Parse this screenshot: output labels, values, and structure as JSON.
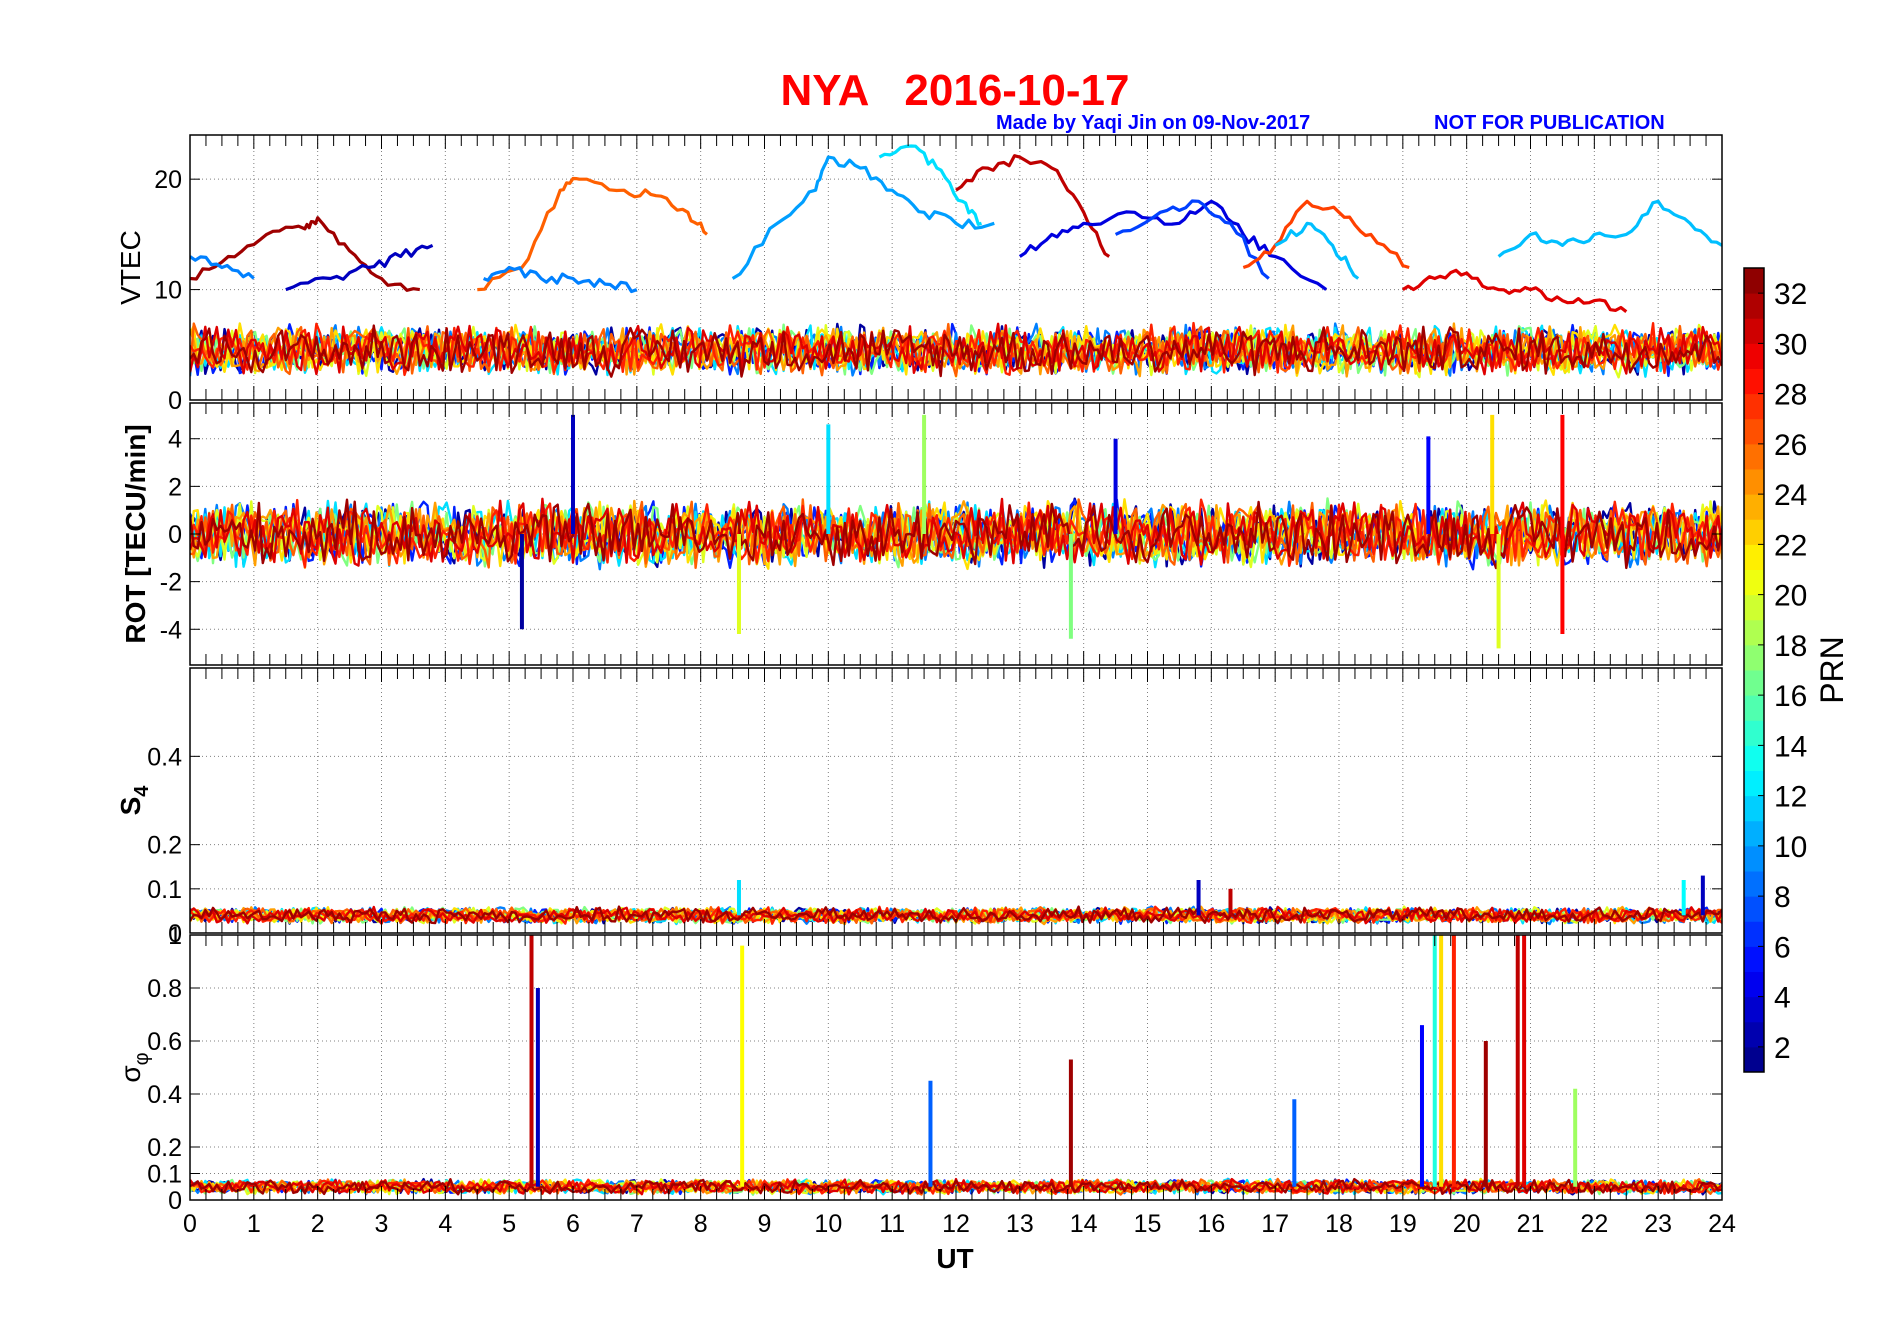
{
  "figure": {
    "title": "NYA   2016-10-17",
    "made_by": "Made by Yaqi Jin on 09-Nov-2017",
    "notice": "NOT FOR PUBLICATION",
    "xlabel": "UT",
    "x_ticks": [
      "0",
      "1",
      "2",
      "3",
      "4",
      "5",
      "6",
      "7",
      "8",
      "9",
      "10",
      "11",
      "12",
      "13",
      "14",
      "15",
      "16",
      "17",
      "18",
      "19",
      "20",
      "21",
      "22",
      "23",
      "24"
    ]
  },
  "panels": [
    {
      "id": "vtec",
      "ylabel": "VTEC",
      "ylabel_bold": false,
      "ylim": [
        0,
        24
      ],
      "yticks": [
        0,
        10,
        20
      ],
      "ytick_labels": [
        "0",
        "10",
        "20"
      ]
    },
    {
      "id": "rot",
      "ylabel": "ROT [TECU/min]",
      "ylabel_bold": true,
      "ylim": [
        -5.5,
        5.5
      ],
      "yticks": [
        -4,
        -2,
        0,
        2,
        4
      ],
      "ytick_labels": [
        "-4",
        "-2",
        "0",
        "2",
        "4"
      ]
    },
    {
      "id": "s4",
      "ylabel": "S",
      "ylabel_sub": "4",
      "ylabel_bold": true,
      "ylim": [
        0,
        0.6
      ],
      "yticks": [
        0,
        0.1,
        0.2,
        0.4
      ],
      "ytick_labels": [
        "0",
        "0.1",
        "0.2",
        "0.4"
      ]
    },
    {
      "id": "sigphi",
      "ylabel": "σ",
      "ylabel_sub": "φ",
      "ylabel_bold": false,
      "ylim": [
        0,
        1
      ],
      "yticks": [
        0,
        0.1,
        0.2,
        0.4,
        0.6,
        0.8,
        1
      ],
      "ytick_labels": [
        "0",
        "0.1",
        "0.2",
        "0.4",
        "0.6",
        "0.8",
        "1"
      ]
    }
  ],
  "colorbar": {
    "label": "PRN",
    "range": [
      1,
      33
    ],
    "ticks": [
      2,
      4,
      6,
      8,
      10,
      12,
      14,
      16,
      18,
      20,
      22,
      24,
      26,
      28,
      30,
      32
    ],
    "tick_labels": [
      "2",
      "4",
      "6",
      "8",
      "10",
      "12",
      "14",
      "16",
      "18",
      "20",
      "22",
      "24",
      "26",
      "28",
      "30",
      "32"
    ],
    "colormap": "jet"
  },
  "chart_data": {
    "type": "line",
    "x_range": [
      0,
      24
    ],
    "grid": true,
    "series": [
      {
        "prn": 32,
        "panel": "vtec",
        "x": [
          0,
          0.6,
          1.2,
          1.8,
          2.0,
          2.5,
          3.0,
          3.6
        ],
        "y": [
          11,
          13,
          15,
          15.5,
          16.5,
          13.5,
          11,
          10
        ]
      },
      {
        "prn": 26,
        "panel": "vtec",
        "x": [
          4.5,
          5.2,
          5.8,
          6.1,
          6.8,
          7.3,
          7.8,
          8.1
        ],
        "y": [
          10,
          12,
          19,
          20,
          19,
          18.5,
          17,
          15
        ]
      },
      {
        "prn": 10,
        "panel": "vtec",
        "x": [
          8.5,
          9.2,
          9.8,
          10.0,
          10.5,
          11.0,
          11.5,
          12.0,
          12.6
        ],
        "y": [
          11,
          16,
          19,
          22,
          21,
          19,
          17,
          16,
          16
        ]
      },
      {
        "prn": 12,
        "panel": "vtec",
        "x": [
          10.8,
          11.3,
          11.7,
          12.1,
          12.4
        ],
        "y": [
          22,
          23,
          21,
          18,
          16
        ]
      },
      {
        "prn": 31,
        "panel": "vtec",
        "x": [
          12.0,
          12.5,
          13.0,
          13.5,
          14.0,
          14.4
        ],
        "y": [
          19,
          21,
          22,
          21,
          17,
          13
        ]
      },
      {
        "prn": 4,
        "panel": "vtec",
        "x": [
          13.0,
          13.5,
          14.0,
          14.8,
          15.5,
          16.0,
          16.5,
          17.0,
          17.8
        ],
        "y": [
          13,
          15,
          16,
          17,
          16,
          18,
          15,
          13,
          10
        ]
      },
      {
        "prn": 7,
        "panel": "vtec",
        "x": [
          14.5,
          15.2,
          15.8,
          16.3,
          16.9
        ],
        "y": [
          15,
          17,
          18,
          16,
          11
        ]
      },
      {
        "prn": 27,
        "panel": "vtec",
        "x": [
          16.5,
          17.0,
          17.5,
          18.0,
          18.5,
          19.1
        ],
        "y": [
          12,
          14,
          18,
          17,
          15,
          12
        ]
      },
      {
        "prn": 11,
        "panel": "vtec",
        "x": [
          17.0,
          17.5,
          17.9,
          18.3
        ],
        "y": [
          14,
          16,
          14,
          11
        ]
      },
      {
        "prn": 30,
        "panel": "vtec",
        "x": [
          19.0,
          19.5,
          20.0,
          20.5,
          21.0,
          21.5,
          22.0,
          22.5
        ],
        "y": [
          10,
          11,
          11.5,
          10,
          10,
          9,
          9,
          8
        ]
      },
      {
        "prn": 11,
        "panel": "vtec",
        "x": [
          20.5,
          21.0,
          21.5,
          22.0,
          22.5,
          23.0,
          23.5,
          24.0
        ],
        "y": [
          13,
          15,
          14,
          15,
          15,
          18,
          16,
          14
        ]
      },
      {
        "prn": 9,
        "panel": "vtec",
        "x": [
          0,
          0.5,
          1.0
        ],
        "y": [
          13,
          12,
          11
        ]
      },
      {
        "prn": 3,
        "panel": "vtec",
        "x": [
          1.5,
          2.2,
          2.8,
          3.3,
          3.8
        ],
        "y": [
          10,
          11,
          12,
          13,
          14
        ]
      },
      {
        "prn": 9,
        "panel": "vtec",
        "x": [
          4.6,
          5.0,
          5.5,
          6.0,
          6.5,
          7.0
        ],
        "y": [
          11,
          12,
          11,
          11,
          10.5,
          10
        ]
      }
    ],
    "background_bands": {
      "vtec": {
        "center_approx": 4.5,
        "spread_approx": 2.5
      },
      "rot": {
        "center_approx": 0,
        "spread_approx": 1.5
      },
      "s4": {
        "center_approx": 0.04,
        "spread_approx": 0.02
      },
      "sigphi": {
        "center_approx": 0.05,
        "spread_approx": 0.03
      }
    },
    "spikes": {
      "rot": [
        {
          "x": 6.0,
          "y": 5.0,
          "prn": 3
        },
        {
          "x": 5.2,
          "y": -4.0,
          "prn": 2
        },
        {
          "x": 11.5,
          "y": 5.0,
          "prn": 18
        },
        {
          "x": 20.4,
          "y": 5.0,
          "prn": 22
        },
        {
          "x": 20.5,
          "y": -4.8,
          "prn": 20
        },
        {
          "x": 21.5,
          "y": 5.0,
          "prn": 29
        },
        {
          "x": 21.5,
          "y": -4.2,
          "prn": 29
        },
        {
          "x": 13.8,
          "y": -4.4,
          "prn": 17
        },
        {
          "x": 8.6,
          "y": -4.2,
          "prn": 20
        },
        {
          "x": 10.0,
          "y": 4.6,
          "prn": 12
        },
        {
          "x": 19.4,
          "y": 4.1,
          "prn": 5
        },
        {
          "x": 14.5,
          "y": 4.0,
          "prn": 4
        }
      ],
      "s4": [
        {
          "x": 8.6,
          "y": 0.12,
          "prn": 12
        },
        {
          "x": 15.8,
          "y": 0.12,
          "prn": 3
        },
        {
          "x": 16.3,
          "y": 0.1,
          "prn": 31
        },
        {
          "x": 23.7,
          "y": 0.13,
          "prn": 3
        },
        {
          "x": 23.4,
          "y": 0.12,
          "prn": 13
        }
      ],
      "sigphi": [
        {
          "x": 5.35,
          "y": 1.0,
          "prn": 31
        },
        {
          "x": 5.45,
          "y": 0.8,
          "prn": 3
        },
        {
          "x": 8.65,
          "y": 0.96,
          "prn": 21
        },
        {
          "x": 13.8,
          "y": 0.53,
          "prn": 32
        },
        {
          "x": 11.6,
          "y": 0.45,
          "prn": 8
        },
        {
          "x": 19.5,
          "y": 1.0,
          "prn": 14
        },
        {
          "x": 19.6,
          "y": 1.0,
          "prn": 22
        },
        {
          "x": 19.8,
          "y": 1.0,
          "prn": 28
        },
        {
          "x": 20.8,
          "y": 1.0,
          "prn": 31
        },
        {
          "x": 20.9,
          "y": 1.0,
          "prn": 30
        },
        {
          "x": 20.3,
          "y": 0.6,
          "prn": 32
        },
        {
          "x": 21.7,
          "y": 0.42,
          "prn": 18
        },
        {
          "x": 17.3,
          "y": 0.38,
          "prn": 8
        },
        {
          "x": 19.3,
          "y": 0.66,
          "prn": 5
        }
      ]
    }
  }
}
